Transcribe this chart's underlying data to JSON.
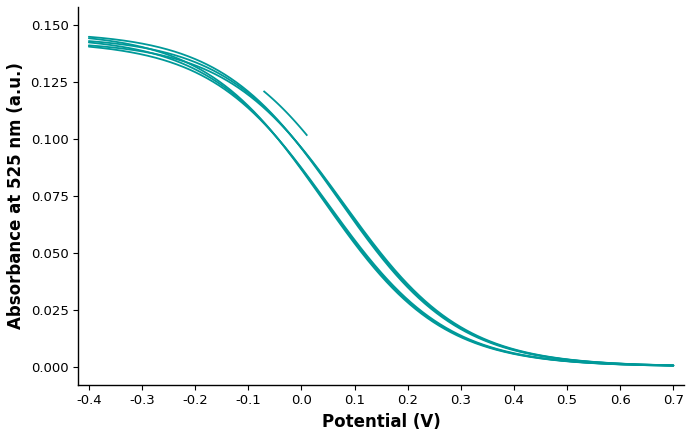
{
  "xlabel": "Potential (V)",
  "ylabel": "Absorbance at 525 nm (a.u.)",
  "line_color": "#009999",
  "line_width": 1.3,
  "xlim": [
    -0.42,
    0.72
  ],
  "ylim": [
    -0.008,
    0.158
  ],
  "xticks": [
    -0.4,
    -0.3,
    -0.2,
    -0.1,
    0.0,
    0.1,
    0.2,
    0.3,
    0.4,
    0.5,
    0.6,
    0.7
  ],
  "yticks": [
    0.0,
    0.025,
    0.05,
    0.075,
    0.1,
    0.125,
    0.15
  ],
  "background_color": "#ffffff",
  "abs_max": 0.147,
  "mid_base": 0.08,
  "steepness": 9.0
}
